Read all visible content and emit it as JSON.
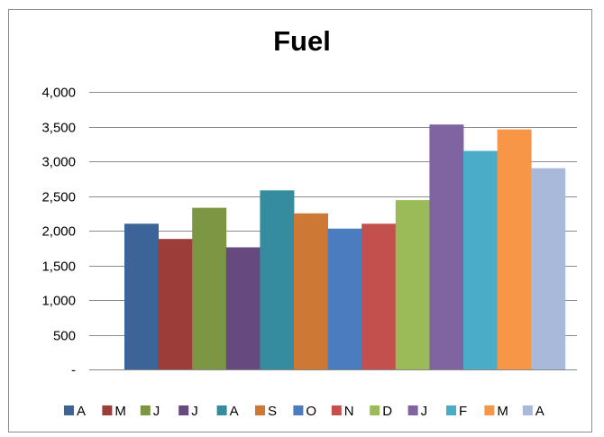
{
  "chart_data": {
    "type": "bar",
    "title": "Fuel",
    "xlabel": "",
    "ylabel": "",
    "ylim": [
      0,
      4000
    ],
    "yticks": [
      0,
      500,
      1000,
      1500,
      2000,
      2500,
      3000,
      3500,
      4000
    ],
    "ytick_labels": [
      "-",
      "500",
      "1,000",
      "1,500",
      "2,000",
      "2,500",
      "3,000",
      "3,500",
      "4,000"
    ],
    "grid": "horizontal",
    "legend_position": "bottom",
    "categories": [
      "A",
      "M",
      "J",
      "J",
      "A",
      "S",
      "O",
      "N",
      "D",
      "J",
      "F",
      "M",
      "A"
    ],
    "values": [
      2100,
      1880,
      2330,
      1760,
      2580,
      2250,
      2030,
      2100,
      2440,
      3530,
      3150,
      3460,
      2900
    ],
    "colors": [
      "#3c6499",
      "#9d3d3a",
      "#7d9643",
      "#65497f",
      "#358c9e",
      "#cd7834",
      "#4a7cbf",
      "#c4504d",
      "#9bbb59",
      "#8064a2",
      "#4aacc6",
      "#f79646",
      "#a9b9d9"
    ]
  }
}
